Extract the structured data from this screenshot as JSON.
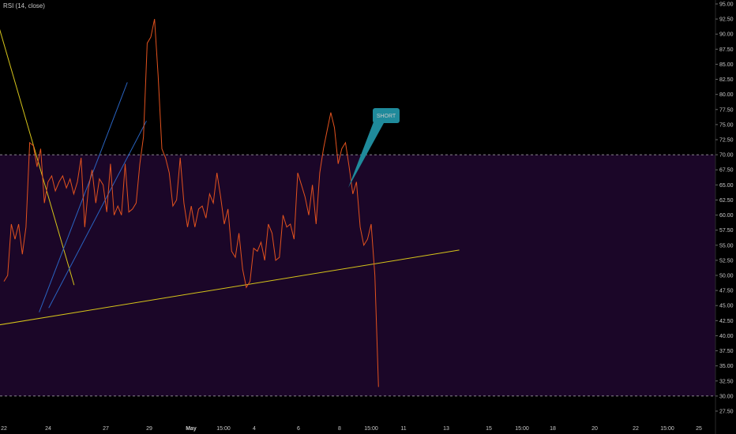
{
  "indicator_label": "RSI (14, close)",
  "colors": {
    "background": "#000000",
    "band_fill": "#1b0628",
    "rsi_line": "#e2521e",
    "yellow_lines": "#d6c41a",
    "blue_lines": "#2a64c2",
    "guide_lines": "#b3b3b3",
    "short_callout": "#1f8a9b"
  },
  "callout": {
    "text": "SHORT"
  },
  "chart_data": {
    "type": "line",
    "title": "",
    "xlabel": "",
    "ylabel": "",
    "ylim": [
      27.5,
      95.0
    ],
    "y_ticks": [
      "27.50",
      "30.00",
      "32.50",
      "35.00",
      "37.50",
      "40.00",
      "42.50",
      "45.00",
      "47.50",
      "50.00",
      "52.50",
      "55.00",
      "57.50",
      "60.00",
      "62.50",
      "65.00",
      "67.50",
      "70.00",
      "72.50",
      "75.00",
      "77.50",
      "80.00",
      "82.50",
      "85.00",
      "87.50",
      "90.00",
      "92.50",
      "95.00"
    ],
    "x_ticks": [
      {
        "label": "22",
        "bold": false
      },
      {
        "label": "24",
        "bold": false
      },
      {
        "label": "27",
        "bold": false
      },
      {
        "label": "29",
        "bold": false
      },
      {
        "label": "May",
        "bold": true
      },
      {
        "label": "15:00",
        "bold": false
      },
      {
        "label": "4",
        "bold": false
      },
      {
        "label": "6",
        "bold": false
      },
      {
        "label": "8",
        "bold": false
      },
      {
        "label": "15:00",
        "bold": false
      },
      {
        "label": "11",
        "bold": false
      },
      {
        "label": "13",
        "bold": false
      },
      {
        "label": "15",
        "bold": false
      },
      {
        "label": "15:00",
        "bold": false
      },
      {
        "label": "18",
        "bold": false
      },
      {
        "label": "20",
        "bold": false
      },
      {
        "label": "22",
        "bold": false
      },
      {
        "label": "15:00",
        "bold": false
      },
      {
        "label": "25",
        "bold": false
      }
    ],
    "levels": {
      "upper": 70.0,
      "lower": 30.0
    },
    "series": [
      {
        "values": [
          49.0,
          50.0,
          58.5,
          56.0,
          58.5,
          53.5,
          58.0,
          72.0,
          71.5,
          68.0,
          71.0,
          62.0,
          65.5,
          66.5,
          64.0,
          65.5,
          66.5,
          64.5,
          66.0,
          63.5,
          65.5,
          69.5,
          58.0,
          64.5,
          67.5,
          62.0,
          66.0,
          65.0,
          60.5,
          68.5,
          60.0,
          61.5,
          60.0,
          68.5,
          60.5,
          61.0,
          62.0,
          68.5,
          73.0,
          88.5,
          89.5,
          92.5,
          83.0,
          71.0,
          69.5,
          67.0,
          61.5,
          62.5,
          69.5,
          62.0,
          58.0,
          61.5,
          58.0,
          61.0,
          61.5,
          59.5,
          63.5,
          62.0,
          67.0,
          63.0,
          58.5,
          61.0,
          54.0,
          53.0,
          57.0,
          51.0,
          48.0,
          49.0,
          54.5,
          54.0,
          55.5,
          52.5,
          58.5,
          57.0,
          52.5,
          53.0,
          60.0,
          58.0,
          58.5,
          56.0,
          67.0,
          65.0,
          63.0,
          60.0,
          65.0,
          58.5,
          67.0,
          71.0,
          74.0,
          77.0,
          74.5,
          68.5,
          71.0,
          72.0,
          68.0,
          63.5,
          65.5,
          58.0,
          55.0,
          56.0,
          58.5,
          50.0,
          31.5
        ]
      }
    ],
    "trendlines": [
      {
        "name": "yellow-descending-1",
        "color": "yellow",
        "from": [
          -28.6,
          83.7
        ],
        "to": [
          -12.2,
          49.5
        ]
      },
      {
        "name": "yellow-descending-2",
        "color": "yellow",
        "from": [
          -2.8,
          94.2
        ],
        "to": [
          19.1,
          48.4
        ]
      },
      {
        "name": "yellow-ascending",
        "color": "yellow",
        "from": [
          -47.7,
          37.2
        ],
        "to": [
          124.0,
          54.2
        ]
      },
      {
        "name": "blue-channel-upper",
        "color": "blue",
        "from": [
          9.6,
          43.9
        ],
        "to": [
          33.6,
          82.0
        ]
      },
      {
        "name": "blue-channel-lower",
        "color": "blue",
        "from": [
          12.2,
          44.6
        ],
        "to": [
          38.8,
          75.6
        ]
      }
    ]
  }
}
